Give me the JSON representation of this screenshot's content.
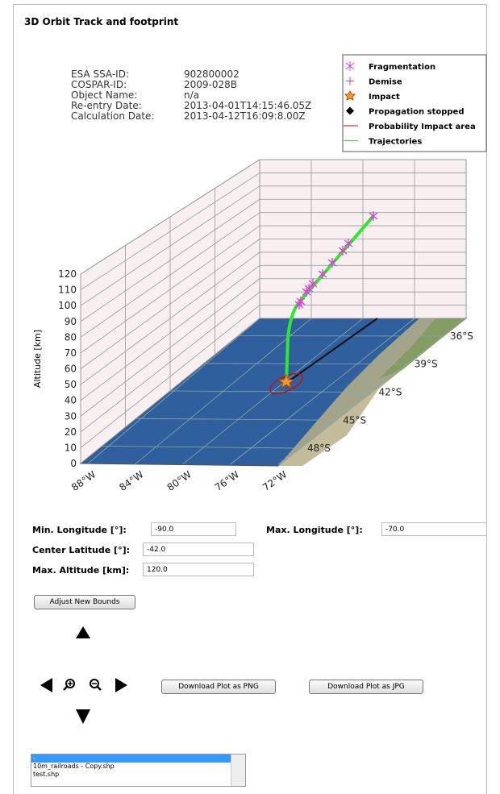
{
  "panel": {
    "title": "3D Orbit Track and footprint"
  },
  "info": {
    "rows": [
      {
        "label": "ESA SSA-ID:",
        "value": "902800002"
      },
      {
        "label": "COSPAR-ID:",
        "value": "2009-028B"
      },
      {
        "label": "Object Name:",
        "value": "n/a"
      },
      {
        "label": "Re-entry Date:",
        "value": "2013-04-01T14:15:46.05Z"
      },
      {
        "label": "Calculation Date:",
        "value": "2013-04-12T16:09:8.00Z"
      }
    ]
  },
  "legend": {
    "items": [
      "Fragmentation",
      "Demise",
      "Impact",
      "Propagation stopped",
      "Probability Impact area",
      "Trajectories"
    ]
  },
  "plot": {
    "z_axis_label": "Altitude [km]",
    "z_ticks": [
      "0",
      "10",
      "20",
      "30",
      "40",
      "50",
      "60",
      "70",
      "80",
      "90",
      "100",
      "110",
      "120"
    ],
    "longitude_ticks": [
      "88°W",
      "84°W",
      "80°W",
      "76°W",
      "72°W"
    ],
    "latitude_ticks": [
      "36°S",
      "39°S",
      "42°S",
      "45°S",
      "48°S"
    ]
  },
  "form": {
    "fields": [
      {
        "label": "Min. Longitude [°]:",
        "value": "-90.0"
      },
      {
        "label": "Max. Longitude [°]:",
        "value": "-70.0"
      },
      {
        "label": "Center Latitude [°]:",
        "value": "-42.0"
      },
      {
        "label": "Max. Altitude [km]:",
        "value": "120.0"
      }
    ],
    "adjust_button": "Adjust New Bounds"
  },
  "downloads": [
    "Download Plot as PNG",
    "Download Plot as JPG"
  ],
  "file_list": {
    "items": [
      "-",
      "10m_railroads - Copy.shp",
      "test.shp"
    ]
  }
}
